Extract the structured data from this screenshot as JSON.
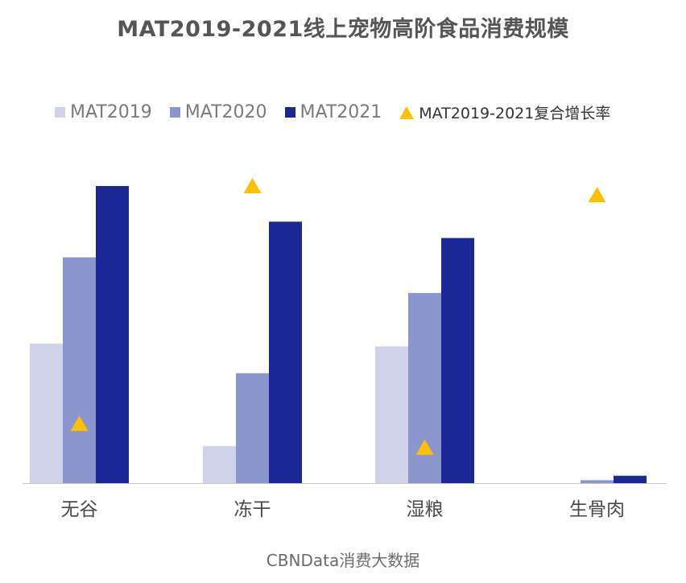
{
  "chart_data": {
    "type": "bar",
    "title": "MAT2019-2021线上宠物高阶食品消费规模",
    "categories": [
      "无谷",
      "冻干",
      "湿粮",
      "生骨肉"
    ],
    "series": [
      {
        "name": "MAT2019",
        "color": "#d0d2ea",
        "values": [
          47,
          12.5,
          46,
          0
        ]
      },
      {
        "name": "MAT2020",
        "color": "#8b97cc",
        "values": [
          76,
          37,
          64,
          1
        ]
      },
      {
        "name": "MAT2021",
        "color": "#1c2896",
        "values": [
          100,
          88,
          82.5,
          2.5
        ]
      }
    ],
    "growth_series": {
      "name": "MAT2019-2021复合增长率",
      "color": "#ffc000",
      "marker": "triangle",
      "values": [
        20,
        100,
        12,
        97
      ]
    },
    "ylim": [
      0,
      100
    ],
    "axis_labels_shown": false,
    "grid": false,
    "legend_position": "top"
  },
  "source": "CBNData消费大数据"
}
